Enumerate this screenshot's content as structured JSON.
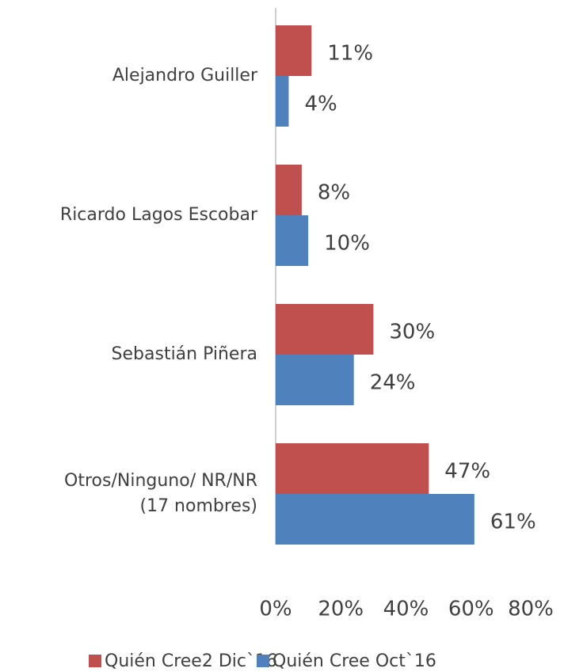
{
  "chart_data": {
    "type": "bar",
    "orientation": "horizontal",
    "categories": [
      "Alejandro Guiller",
      "Ricardo Lagos Escobar",
      "Sebastián Piñera",
      "Otros/Ninguno/ NR/NR\n(17 nombres)"
    ],
    "series": [
      {
        "name": "Quién Cree2 Dic`16",
        "color": "#c0504d",
        "values": [
          11,
          8,
          30,
          47
        ],
        "value_labels": [
          "11%",
          "8%",
          "30%",
          "47%"
        ]
      },
      {
        "name": "Quién Cree Oct`16",
        "color": "#4f81bd",
        "values": [
          4,
          10,
          24,
          61
        ],
        "value_labels": [
          "4%",
          "10%",
          "24%",
          "61%"
        ]
      }
    ],
    "xlim": [
      0,
      80
    ],
    "xticks": [
      {
        "value": 0,
        "label": "0%"
      },
      {
        "value": 20,
        "label": "20%"
      },
      {
        "value": 40,
        "label": "40%"
      },
      {
        "value": 60,
        "label": "60%"
      },
      {
        "value": 80,
        "label": "80%"
      }
    ],
    "legend": "bottom"
  }
}
